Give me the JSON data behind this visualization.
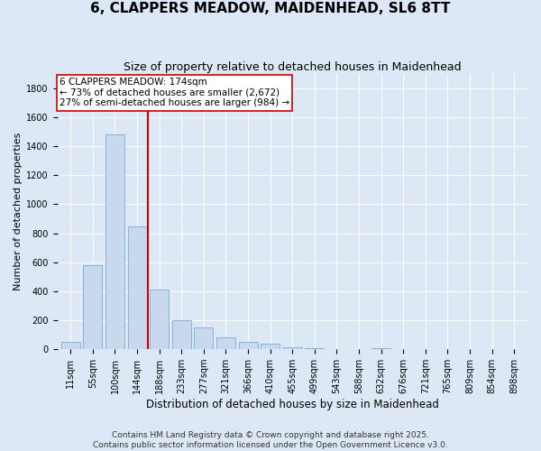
{
  "title": "6, CLAPPERS MEADOW, MAIDENHEAD, SL6 8TT",
  "subtitle": "Size of property relative to detached houses in Maidenhead",
  "xlabel": "Distribution of detached houses by size in Maidenhead",
  "ylabel": "Number of detached properties",
  "categories": [
    "11sqm",
    "55sqm",
    "100sqm",
    "144sqm",
    "188sqm",
    "233sqm",
    "277sqm",
    "321sqm",
    "366sqm",
    "410sqm",
    "455sqm",
    "499sqm",
    "543sqm",
    "588sqm",
    "632sqm",
    "676sqm",
    "721sqm",
    "765sqm",
    "809sqm",
    "854sqm",
    "898sqm"
  ],
  "values": [
    50,
    580,
    1480,
    850,
    410,
    200,
    150,
    80,
    50,
    40,
    15,
    5,
    0,
    0,
    5,
    0,
    3,
    0,
    0,
    0,
    0
  ],
  "bar_color": "#c8d9ed",
  "bar_edge_color": "#7aacd4",
  "background_color": "#dce8f5",
  "grid_color": "#ffffff",
  "vline_color": "#cc0000",
  "annotation_text": "6 CLAPPERS MEADOW: 174sqm\n← 73% of detached houses are smaller (2,672)\n27% of semi-detached houses are larger (984) →",
  "annotation_box_color": "#ffffff",
  "annotation_box_edge": "#cc0000",
  "ylim": [
    0,
    1900
  ],
  "yticks": [
    0,
    200,
    400,
    600,
    800,
    1000,
    1200,
    1400,
    1600,
    1800
  ],
  "footer": "Contains HM Land Registry data © Crown copyright and database right 2025.\nContains public sector information licensed under the Open Government Licence v3.0.",
  "title_fontsize": 11,
  "subtitle_fontsize": 9,
  "xlabel_fontsize": 8.5,
  "ylabel_fontsize": 8,
  "tick_fontsize": 7,
  "annotation_fontsize": 7.5,
  "footer_fontsize": 6.5
}
